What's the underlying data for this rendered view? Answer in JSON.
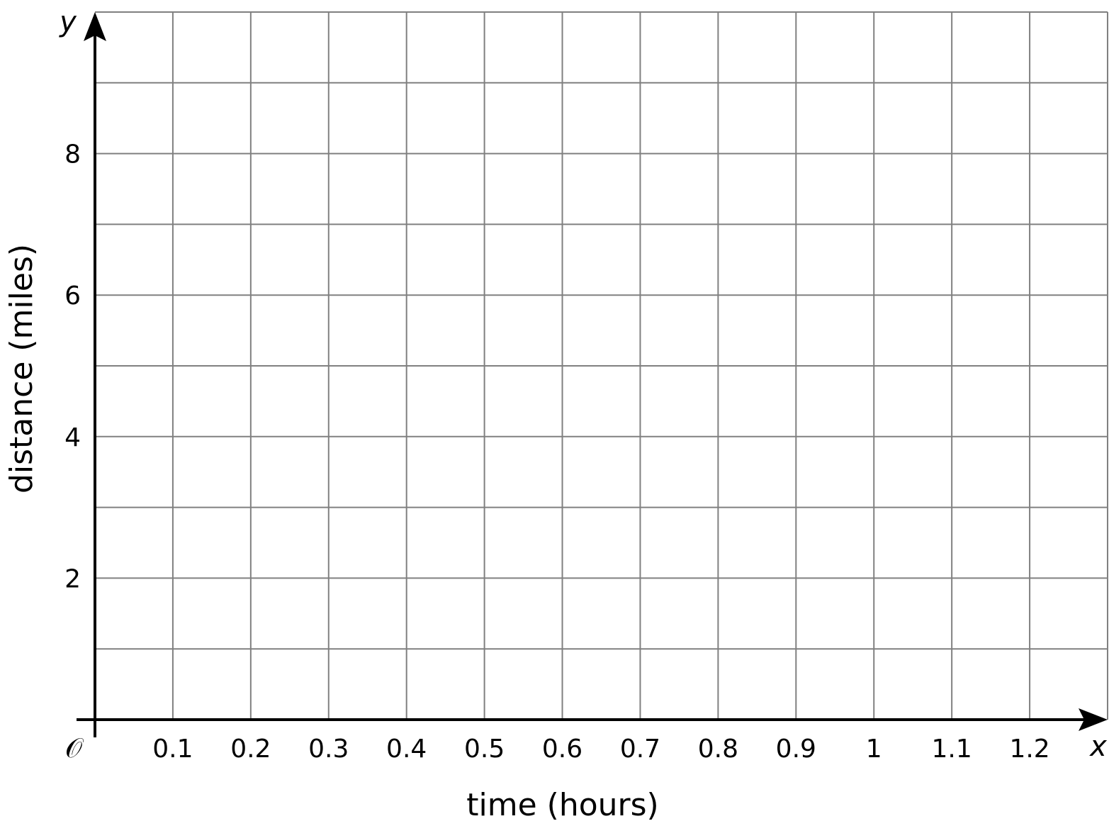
{
  "chart_data": {
    "type": "scatter",
    "title": "",
    "xlabel": "time (hours)",
    "ylabel": "distance (miles)",
    "x_axis_letter": "x",
    "y_axis_letter": "y",
    "origin_label": "𝒪",
    "xlim": [
      0,
      1.3
    ],
    "ylim": [
      0,
      10
    ],
    "x_grid_step": 0.1,
    "y_grid_step": 1,
    "x_ticks": [
      "0.1",
      "0.2",
      "0.3",
      "0.4",
      "0.5",
      "0.6",
      "0.7",
      "0.8",
      "0.9",
      "1",
      "1.1",
      "1.2"
    ],
    "y_ticks": [
      "2",
      "4",
      "6",
      "8"
    ],
    "grid": true,
    "series": [],
    "colors": {
      "grid": "#808080",
      "axis": "#000000"
    }
  }
}
